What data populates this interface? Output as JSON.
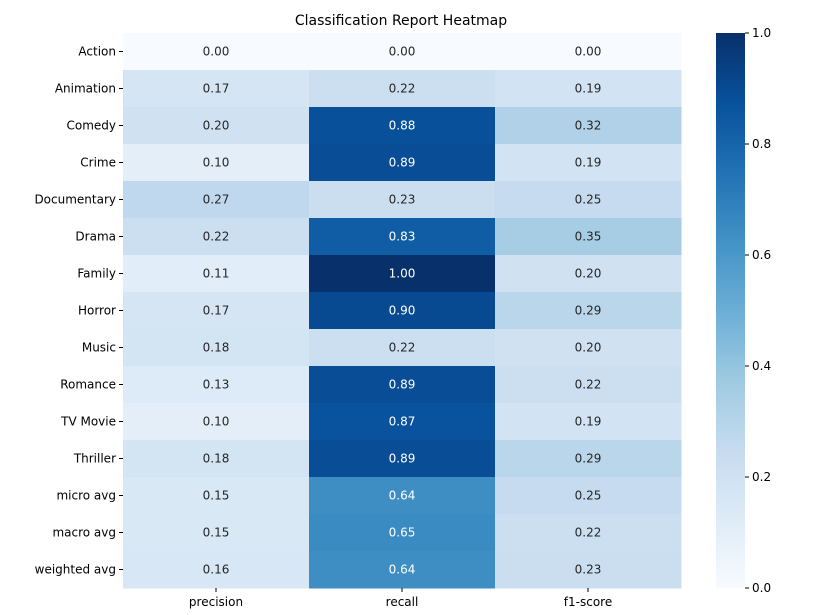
{
  "chart_data": {
    "type": "heatmap",
    "title": "Classification Report Heatmap",
    "xlabel": "",
    "ylabel": "",
    "columns": [
      "precision",
      "recall",
      "f1-score"
    ],
    "rows": [
      "Action",
      "Animation",
      "Comedy",
      "Crime",
      "Documentary",
      "Drama",
      "Family",
      "Horror",
      "Music",
      "Romance",
      "TV Movie",
      "Thriller",
      "micro avg",
      "macro avg",
      "weighted avg"
    ],
    "values": [
      [
        0.0,
        0.0,
        0.0
      ],
      [
        0.17,
        0.22,
        0.19
      ],
      [
        0.2,
        0.88,
        0.32
      ],
      [
        0.1,
        0.89,
        0.19
      ],
      [
        0.27,
        0.23,
        0.25
      ],
      [
        0.22,
        0.83,
        0.35
      ],
      [
        0.11,
        1.0,
        0.2
      ],
      [
        0.17,
        0.9,
        0.29
      ],
      [
        0.18,
        0.22,
        0.2
      ],
      [
        0.13,
        0.89,
        0.22
      ],
      [
        0.1,
        0.87,
        0.19
      ],
      [
        0.18,
        0.89,
        0.29
      ],
      [
        0.15,
        0.64,
        0.25
      ],
      [
        0.15,
        0.65,
        0.22
      ],
      [
        0.16,
        0.64,
        0.23
      ]
    ],
    "value_format_decimals": 2,
    "colormap": "Blues",
    "colorbar": {
      "range": [
        0.0,
        1.0
      ],
      "ticks": [
        0.0,
        0.2,
        0.4,
        0.6,
        0.8,
        1.0
      ],
      "tick_labels": [
        "0.0",
        "0.2",
        "0.4",
        "0.6",
        "0.8",
        "1.0"
      ]
    },
    "grid": false,
    "legend": "colorbar-right"
  }
}
